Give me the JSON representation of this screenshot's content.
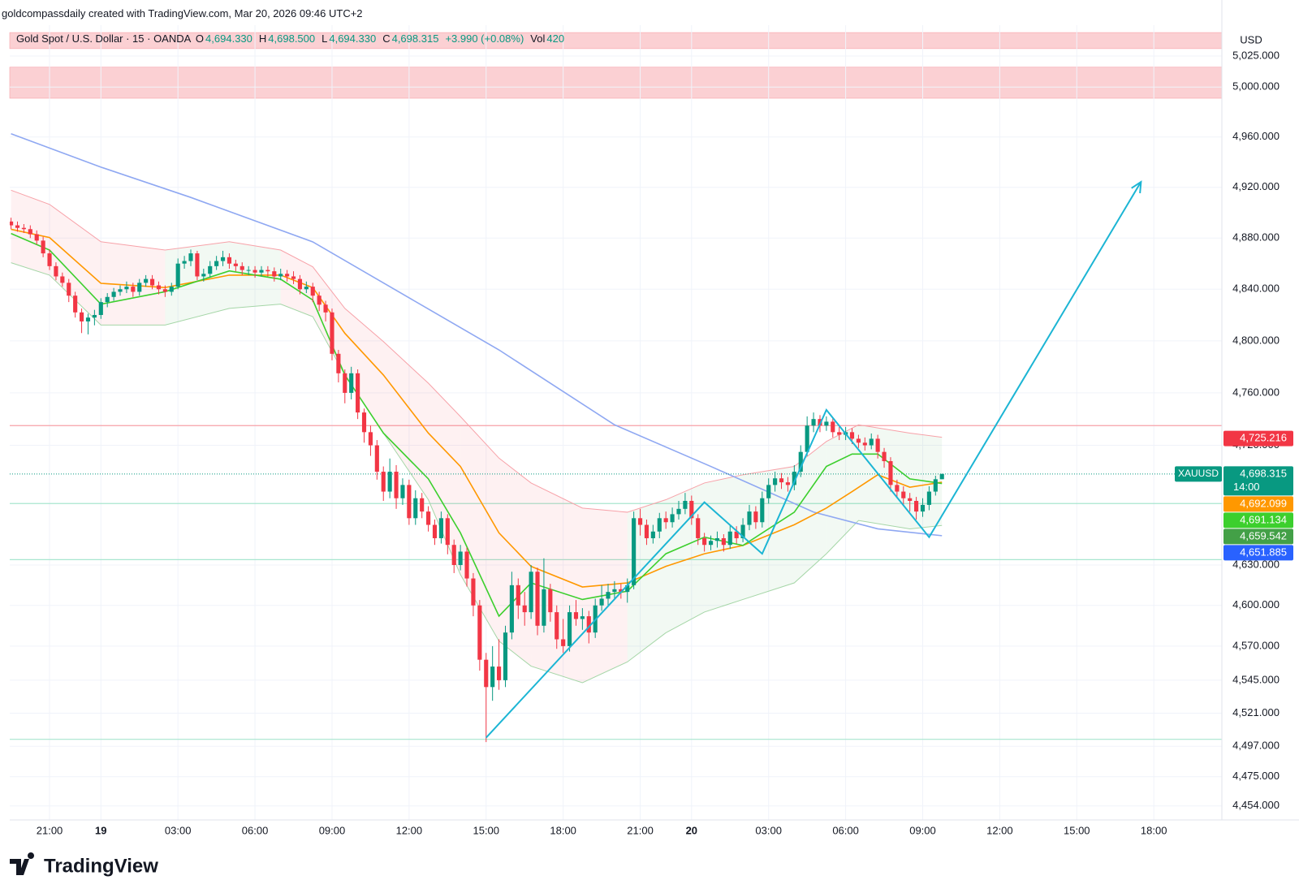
{
  "header": {
    "attribution": "goldcompassdaily created with TradingView.com, Mar 20, 2026 09:46 UTC+2"
  },
  "legend": {
    "symbol": "Gold Spot / U.S. Dollar · 15 · OANDA",
    "ohlc": [
      {
        "key": "O",
        "value": "4,694.330"
      },
      {
        "key": "H",
        "value": "4,698.500"
      },
      {
        "key": "L",
        "value": "4,694.330"
      },
      {
        "key": "C",
        "value": "4,698.315"
      }
    ],
    "change": "+3.990 (+0.08%)",
    "volume": {
      "key": "Vol",
      "value": "420"
    }
  },
  "footer": {
    "brand": "TradingView"
  },
  "chart_data": {
    "type": "candlestick",
    "y_unit": "USD",
    "log": true,
    "grid": true,
    "up_color": "#089981",
    "down_color": "#f23645",
    "xlim": [
      -0.2,
      188.6
    ],
    "xticks": [
      {
        "value": 6,
        "label": "21:00"
      },
      {
        "value": 14,
        "label": "19"
      },
      {
        "value": 26,
        "label": "03:00"
      },
      {
        "value": 38,
        "label": "06:00"
      },
      {
        "value": 50,
        "label": "09:00"
      },
      {
        "value": 62,
        "label": "12:00"
      },
      {
        "value": 74,
        "label": "15:00"
      },
      {
        "value": 86,
        "label": "18:00"
      },
      {
        "value": 98,
        "label": "21:00"
      },
      {
        "value": 106,
        "label": "20"
      },
      {
        "value": 118,
        "label": "03:00"
      },
      {
        "value": 130,
        "label": "06:00"
      },
      {
        "value": 142,
        "label": "09:00"
      },
      {
        "value": 154,
        "label": "12:00"
      },
      {
        "value": 166,
        "label": "15:00"
      },
      {
        "value": 178,
        "label": "18:00"
      }
    ],
    "ylim": [
      4444,
      5050
    ],
    "yticks": [
      {
        "value": 5025,
        "label": "5,025.000"
      },
      {
        "value": 5000,
        "label": "5,000.000"
      },
      {
        "value": 4960,
        "label": "4,960.000"
      },
      {
        "value": 4920,
        "label": "4,920.000"
      },
      {
        "value": 4880,
        "label": "4,880.000"
      },
      {
        "value": 4840,
        "label": "4,840.000"
      },
      {
        "value": 4800,
        "label": "4,800.000"
      },
      {
        "value": 4760,
        "label": "4,760.000"
      },
      {
        "value": 4720,
        "label": "4,720.000"
      },
      {
        "value": 4630,
        "label": "4,630.000"
      },
      {
        "value": 4600,
        "label": "4,600.000"
      },
      {
        "value": 4570,
        "label": "4,570.000"
      },
      {
        "value": 4545,
        "label": "4,545.000"
      },
      {
        "value": 4521,
        "label": "4,521.000"
      },
      {
        "value": 4497,
        "label": "4,497.000"
      },
      {
        "value": 4475,
        "label": "4,475.000"
      },
      {
        "value": 4454,
        "label": "4,454.000"
      }
    ],
    "candles": {
      "open": [
        4893,
        4890,
        4888,
        4887,
        4883,
        4878,
        4868,
        4858,
        4850,
        4845,
        4835,
        4822,
        4815,
        4818,
        4820,
        4830,
        4834,
        4838,
        4840,
        4842,
        4838,
        4845,
        4848,
        4843,
        4840,
        4838,
        4842,
        4860,
        4862,
        4868,
        4850,
        4852,
        4858,
        4862,
        4865,
        4860,
        4858,
        4855,
        4855,
        4853,
        4855,
        4854,
        4850,
        4852,
        4850,
        4848,
        4840,
        4842,
        4835,
        4828,
        4822,
        4790,
        4775,
        4760,
        4775,
        4745,
        4730,
        4720,
        4700,
        4685,
        4700,
        4680,
        4690,
        4665,
        4680,
        4670,
        4660,
        4650,
        4665,
        4645,
        4630,
        4640,
        4620,
        4600,
        4560,
        4540,
        4555,
        4545,
        4580,
        4615,
        4600,
        4595,
        4625,
        4585,
        4612,
        4595,
        4575,
        4570,
        4595,
        4590,
        4592,
        4580,
        4600,
        4605,
        4610,
        4612,
        4610,
        4615,
        4665,
        4660,
        4650,
        4655,
        4665,
        4662,
        4668,
        4672,
        4678,
        4665,
        4650,
        4645,
        4648,
        4650,
        4645,
        4655,
        4650,
        4660,
        4670,
        4662,
        4680,
        4690,
        4695,
        4692,
        4690,
        4700,
        4715,
        4735,
        4740,
        4735,
        4738,
        4730,
        4728,
        4730,
        4725,
        4722,
        4720,
        4725,
        4715,
        4708,
        4690,
        4685,
        4680,
        4678,
        4670,
        4675,
        4685,
        4694.33
      ],
      "high": [
        4896,
        4893,
        4891,
        4890,
        4886,
        4881,
        4871,
        4861,
        4853,
        4848,
        4838,
        4825,
        4821,
        4824,
        4833,
        4837,
        4841,
        4843,
        4846,
        4845,
        4848,
        4851,
        4851,
        4846,
        4843,
        4845,
        4864,
        4866,
        4871,
        4870,
        4856,
        4862,
        4866,
        4870,
        4868,
        4863,
        4861,
        4858,
        4858,
        4858,
        4858,
        4857,
        4856,
        4855,
        4854,
        4851,
        4846,
        4845,
        4838,
        4831,
        4825,
        4793,
        4778,
        4780,
        4778,
        4748,
        4735,
        4724,
        4704,
        4710,
        4705,
        4695,
        4694,
        4686,
        4684,
        4674,
        4664,
        4670,
        4668,
        4649,
        4645,
        4643,
        4624,
        4604,
        4565,
        4570,
        4575,
        4585,
        4625,
        4620,
        4610,
        4630,
        4628,
        4635,
        4616,
        4600,
        4590,
        4600,
        4604,
        4598,
        4596,
        4605,
        4615,
        4616,
        4618,
        4616,
        4620,
        4670,
        4672,
        4664,
        4660,
        4669,
        4670,
        4673,
        4678,
        4684,
        4682,
        4668,
        4654,
        4652,
        4655,
        4653,
        4660,
        4659,
        4665,
        4675,
        4674,
        4685,
        4695,
        4700,
        4699,
        4696,
        4705,
        4720,
        4742,
        4745,
        4743,
        4742,
        4741,
        4734,
        4734,
        4733,
        4728,
        4726,
        4729,
        4728,
        4718,
        4711,
        4694,
        4689,
        4684,
        4681,
        4680,
        4689,
        4697,
        4698.5
      ],
      "low": [
        4887,
        4885,
        4884,
        4880,
        4875,
        4865,
        4855,
        4847,
        4842,
        4830,
        4818,
        4806,
        4805,
        4812,
        4817,
        4826,
        4831,
        4835,
        4837,
        4834,
        4835,
        4842,
        4840,
        4836,
        4834,
        4835,
        4840,
        4856,
        4858,
        4847,
        4846,
        4849,
        4855,
        4858,
        4856,
        4854,
        4851,
        4851,
        4849,
        4850,
        4850,
        4846,
        4847,
        4846,
        4844,
        4836,
        4837,
        4830,
        4823,
        4815,
        4785,
        4768,
        4752,
        4755,
        4740,
        4722,
        4712,
        4694,
        4678,
        4680,
        4672,
        4675,
        4660,
        4660,
        4665,
        4655,
        4645,
        4646,
        4638,
        4624,
        4626,
        4614,
        4592,
        4552,
        4500,
        4530,
        4538,
        4540,
        4575,
        4590,
        4585,
        4590,
        4578,
        4580,
        4588,
        4568,
        4565,
        4566,
        4585,
        4582,
        4572,
        4576,
        4596,
        4600,
        4604,
        4605,
        4602,
        4612,
        4652,
        4645,
        4646,
        4650,
        4657,
        4658,
        4664,
        4668,
        4660,
        4645,
        4640,
        4641,
        4643,
        4640,
        4642,
        4646,
        4647,
        4656,
        4657,
        4658,
        4676,
        4685,
        4687,
        4685,
        4686,
        4696,
        4712,
        4730,
        4730,
        4731,
        4726,
        4724,
        4724,
        4721,
        4718,
        4716,
        4717,
        4710,
        4703,
        4685,
        4680,
        4675,
        4670,
        4664,
        4666,
        4671,
        4682,
        4694.33
      ],
      "close": [
        4890,
        4888,
        4887,
        4883,
        4878,
        4868,
        4858,
        4850,
        4845,
        4835,
        4822,
        4815,
        4818,
        4820,
        4830,
        4834,
        4838,
        4840,
        4842,
        4838,
        4845,
        4848,
        4843,
        4840,
        4838,
        4842,
        4860,
        4862,
        4868,
        4850,
        4852,
        4858,
        4862,
        4865,
        4860,
        4858,
        4855,
        4855,
        4853,
        4855,
        4854,
        4850,
        4852,
        4850,
        4848,
        4840,
        4842,
        4835,
        4828,
        4822,
        4790,
        4775,
        4760,
        4775,
        4745,
        4730,
        4720,
        4700,
        4685,
        4700,
        4680,
        4690,
        4665,
        4680,
        4670,
        4660,
        4650,
        4665,
        4645,
        4630,
        4640,
        4620,
        4600,
        4560,
        4540,
        4555,
        4545,
        4580,
        4615,
        4600,
        4595,
        4625,
        4585,
        4612,
        4595,
        4575,
        4570,
        4595,
        4590,
        4592,
        4580,
        4600,
        4605,
        4610,
        4612,
        4610,
        4615,
        4665,
        4660,
        4650,
        4655,
        4665,
        4662,
        4668,
        4672,
        4678,
        4665,
        4650,
        4645,
        4648,
        4650,
        4645,
        4655,
        4650,
        4660,
        4670,
        4662,
        4680,
        4690,
        4695,
        4692,
        4690,
        4700,
        4715,
        4735,
        4740,
        4735,
        4738,
        4730,
        4728,
        4730,
        4725,
        4722,
        4720,
        4725,
        4715,
        4708,
        4690,
        4685,
        4680,
        4678,
        4670,
        4675,
        4685,
        4694.33,
        4698.315
      ]
    },
    "band": {
      "color": "#f7a1a8",
      "lower_color": "#a5d6a7",
      "up_fill": "#4caf50",
      "down_fill": "#f23645",
      "x": [
        0,
        6,
        14,
        24,
        34,
        42,
        47,
        52,
        58,
        65,
        70,
        76,
        81,
        89,
        96,
        102,
        108,
        114,
        122,
        127,
        132,
        140,
        145
      ],
      "upper": [
        4917.7,
        4906.5,
        4877.1,
        4870.6,
        4877.1,
        4870.6,
        4857.5,
        4825.1,
        4799.4,
        4767.4,
        4741.9,
        4710.3,
        4691.5,
        4672.6,
        4669.5,
        4678.9,
        4691.5,
        4697.7,
        4704.0,
        4722.9,
        4735.6,
        4729.3,
        4726.1
      ],
      "lower": [
        4860.7,
        4851.0,
        4812.2,
        4812.2,
        4825.1,
        4828.4,
        4818.7,
        4773.7,
        4729.3,
        4678.9,
        4622.9,
        4573.7,
        4555.3,
        4543.2,
        4558.4,
        4579.8,
        4595.1,
        4604.4,
        4616.7,
        4638.4,
        4663.3,
        4657.0,
        4659.542
      ]
    },
    "series": [
      {
        "color": "#8fa8f2",
        "x": [
          0,
          14,
          28,
          47,
          59,
          76,
          94,
          109,
          125,
          135,
          145
        ],
        "values": [
          4962.6,
          4936,
          4912,
          4877,
          4842,
          4793,
          4735.6,
          4704,
          4669.6,
          4657,
          4651.885
        ]
      },
      {
        "color": "#ff9800",
        "x": [
          0,
          6,
          14,
          24,
          34,
          42,
          47,
          52,
          58,
          65,
          70,
          76,
          81,
          89,
          96,
          102,
          108,
          114,
          122,
          127,
          131,
          135,
          140,
          145
        ],
        "values": [
          4886.9,
          4880.4,
          4844.6,
          4841.3,
          4851.0,
          4851.0,
          4841.3,
          4805.8,
          4773.7,
          4729.3,
          4704.0,
          4654.0,
          4629.0,
          4613.7,
          4616.7,
          4629.0,
          4638.4,
          4644.6,
          4660.1,
          4672.6,
          4685.0,
          4697.7,
          4688.3,
          4692.099
        ]
      },
      {
        "color": "#3ccf2d",
        "x": [
          0,
          6,
          14,
          24,
          34,
          42,
          47,
          52,
          58,
          65,
          70,
          76,
          81,
          89,
          96,
          102,
          108,
          114,
          122,
          127,
          131,
          135,
          140,
          145
        ],
        "values": [
          4883.6,
          4870.6,
          4828.4,
          4838.1,
          4854.3,
          4847.8,
          4831.6,
          4773.7,
          4729.3,
          4694.6,
          4654.0,
          4592.1,
          4616.7,
          4604.4,
          4610.6,
          4638.4,
          4650.8,
          4644.6,
          4669.5,
          4704.0,
          4713.4,
          4713.4,
          4694.6,
          4691.134
        ]
      }
    ],
    "zones": [
      {
        "from": 5031,
        "to": 5044,
        "color": "#fbd0d3"
      },
      {
        "from": 4991,
        "to": 5016,
        "color": "#fbd0d3"
      }
    ],
    "hlines": [
      {
        "value": 4735,
        "color": "#f7a1a8"
      },
      {
        "value": 4676,
        "color": "#a8e6cf"
      },
      {
        "value": 4634,
        "color": "#a8e6cf"
      },
      {
        "value": 4502,
        "color": "#a8e6cf"
      }
    ],
    "drawing": {
      "color": "#1cb5d4",
      "x": [
        74,
        108,
        117,
        127,
        143,
        176
      ],
      "values": [
        4503.2,
        4677,
        4638.4,
        4747,
        4650.8,
        4924.3
      ]
    },
    "price_labels": [
      {
        "value": 4725.216,
        "label": "4,725.216",
        "color": "#f23645"
      },
      {
        "value": 4698.315,
        "label": "4,698.315",
        "symbol": "XAUUSD",
        "countdown": "14:00",
        "color": "#089981"
      },
      {
        "value": 4692.099,
        "label": "4,692.099",
        "color": "#ff9800"
      },
      {
        "value": 4691.134,
        "label": "4,691.134",
        "color": "#3ccf2d"
      },
      {
        "value": 4659.542,
        "label": "4,659.542",
        "color": "#43a047"
      },
      {
        "value": 4651.885,
        "label": "4,651.885",
        "color": "#2962ff"
      }
    ]
  }
}
